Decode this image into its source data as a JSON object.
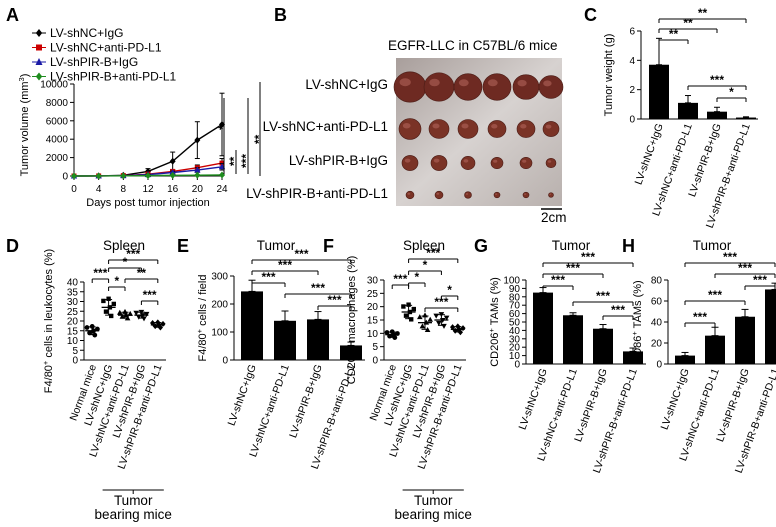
{
  "chart_data": [
    {
      "id": "A",
      "type": "line",
      "xlabel": "Days post tumor injection",
      "ylabel": "Tumor volume (mm3)",
      "x": [
        0,
        4,
        8,
        12,
        16,
        20,
        24
      ],
      "xticks": [
        0,
        4,
        8,
        12,
        16,
        20,
        24
      ],
      "ylim": [
        0,
        10000
      ],
      "yticks": [
        0,
        2000,
        4000,
        6000,
        8000,
        10000
      ],
      "series": [
        {
          "name": "LV-shNC+IgG",
          "color": "#000000",
          "marker": "diamond",
          "values": [
            0,
            10,
            80,
            500,
            1600,
            3900,
            5600
          ],
          "err": [
            0,
            5,
            40,
            300,
            1000,
            2000,
            3400
          ]
        },
        {
          "name": "LV-shNC+anti-PD-L1",
          "color": "#cc0000",
          "marker": "square",
          "values": [
            0,
            8,
            40,
            200,
            500,
            900,
            1400
          ],
          "err": [
            0,
            4,
            20,
            80,
            200,
            300,
            500
          ]
        },
        {
          "name": "LV-shPIR-B+IgG",
          "color": "#1a1aa6",
          "marker": "triangle",
          "values": [
            0,
            8,
            35,
            150,
            380,
            650,
            1000
          ],
          "err": [
            0,
            4,
            15,
            60,
            150,
            250,
            350
          ]
        },
        {
          "name": "LV-shPIR-B+anti-PD-L1",
          "color": "#1e8c1e",
          "marker": "diamond",
          "values": [
            0,
            5,
            15,
            40,
            70,
            90,
            110
          ],
          "err": [
            0,
            3,
            8,
            15,
            25,
            30,
            40
          ]
        }
      ],
      "significance": [
        "*",
        "**",
        "***",
        "**"
      ]
    },
    {
      "id": "B",
      "type": "image",
      "title": "EGFR-LLC in C57BL/6 mice",
      "rows": [
        "LV-shNC+IgG",
        "LV-shNC+anti-PD-L1",
        "LV-shPIR-B+IgG",
        "LV-shPIR-B+anti-PD-L1"
      ],
      "scale_label": "2cm"
    },
    {
      "id": "C",
      "type": "bar",
      "ylabel": "Tumor weight (g)",
      "ylim": [
        0,
        6
      ],
      "yticks": [
        0,
        2,
        4,
        6
      ],
      "categories": [
        "LV-shNC+IgG",
        "LV-shNC+anti-PD-L1",
        "LV-shPIR-B+IgG",
        "LV-shPIR-B+anti-PD-L1"
      ],
      "values": [
        3.7,
        1.1,
        0.5,
        0.1
      ],
      "err": [
        1.8,
        0.5,
        0.3,
        0.05
      ],
      "significance": [
        "**",
        "**",
        "**",
        "***",
        "*"
      ]
    },
    {
      "id": "D",
      "type": "scatter",
      "title": "Spleen",
      "ylabel": "F4/80+ cells in leukocytes (%)",
      "ylim": [
        0,
        40
      ],
      "yticks": [
        0,
        5,
        10,
        15,
        20,
        25,
        30,
        35,
        40
      ],
      "categories": [
        "Normal mice",
        "LV-shNC+IgG",
        "LV-shNC+anti-PD-L1",
        "LV-shPIR-B+IgG",
        "LV-shPIR-B+anti-PD-L1"
      ],
      "means": [
        15,
        27,
        23,
        23,
        18
      ],
      "err": [
        2,
        4,
        1.5,
        1.5,
        1.2
      ],
      "group_label": "Tumor bearing mice",
      "significance": [
        "***",
        "***",
        "*",
        "*",
        "**",
        "***"
      ]
    },
    {
      "id": "E",
      "type": "bar",
      "title": "Tumor",
      "ylabel": "F4/80+ cells / field",
      "ylim": [
        0,
        300
      ],
      "yticks": [
        0,
        100,
        200,
        300
      ],
      "categories": [
        "LV-shNC+IgG",
        "LV-shNC+anti-PD-L1",
        "LV-shPIR-B+IgG",
        "LV-shPIR-B+anti-PD-L1"
      ],
      "values": [
        245,
        140,
        145,
        52
      ],
      "err": [
        40,
        35,
        28,
        12
      ],
      "significance": [
        "***",
        "***",
        "***",
        "***",
        "***"
      ]
    },
    {
      "id": "F",
      "type": "scatter",
      "title": "Spleen",
      "ylabel": "CD206+ macrophages (%)",
      "ylim": [
        0,
        30
      ],
      "yticks": [
        0,
        5,
        10,
        15,
        20,
        25,
        30
      ],
      "categories": [
        "Normal mice",
        "LV-shNC+IgG",
        "LV-shNC+anti-PD-L1",
        "LV-shPIR-B+IgG",
        "LV-shPIR-B+anti-PD-L1"
      ],
      "means": [
        9.5,
        18,
        14,
        15,
        11.5
      ],
      "err": [
        1,
        2.5,
        2.5,
        2,
        1
      ],
      "group_label": "Tumor bearing mice",
      "significance": [
        "***",
        "***",
        "*",
        "*",
        "*",
        "***"
      ]
    },
    {
      "id": "G",
      "type": "bar",
      "title": "Tumor",
      "ylabel": "CD206+ TAMs (%)",
      "ylim": [
        0,
        100
      ],
      "yticks": [
        0,
        10,
        20,
        30,
        40,
        50,
        60,
        70,
        80,
        90,
        100
      ],
      "categories": [
        "LV-shNC+IgG",
        "LV-shNC+anti-PD-L1",
        "LV-shPIR-B+IgG",
        "LV-shPIR-B+anti-PD-L1"
      ],
      "values": [
        85,
        58,
        42,
        15
      ],
      "err": [
        6,
        3,
        5,
        4
      ],
      "significance": [
        "***",
        "***",
        "***",
        "***",
        "***"
      ]
    },
    {
      "id": "H",
      "type": "bar",
      "title": "Tumor",
      "ylabel": "CD86+ TAMs (%)",
      "ylim": [
        0,
        80
      ],
      "yticks": [
        0,
        20,
        40,
        60,
        80
      ],
      "categories": [
        "LV-shNC+IgG",
        "LV-shNC+anti-PD-L1",
        "LV-shPIR-B+IgG",
        "LV-shPIR-B+anti-PD-L1"
      ],
      "values": [
        8,
        27,
        45,
        71
      ],
      "err": [
        3,
        8,
        7,
        6
      ],
      "significance": [
        "***",
        "***",
        "***",
        "***",
        "***"
      ]
    }
  ]
}
